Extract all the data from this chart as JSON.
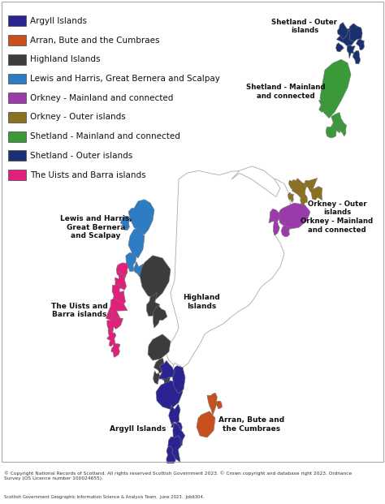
{
  "background_color": "#ffffff",
  "legend_entries": [
    {
      "label": "Argyll Islands",
      "color": "#2B2391"
    },
    {
      "label": "Arran, Bute and the Cumbraes",
      "color": "#C8501C"
    },
    {
      "label": "Highland Islands",
      "color": "#3C3C3C"
    },
    {
      "label": "Lewis and Harris, Great Bernera and Scalpay",
      "color": "#2E7DC4"
    },
    {
      "label": "Orkney - Mainland and connected",
      "color": "#9B3BAB"
    },
    {
      "label": "Orkney - Outer islands",
      "color": "#8B7020"
    },
    {
      "label": "Shetland - Mainland and connected",
      "color": "#3A9A3A"
    },
    {
      "label": "Shetland - Outer islands",
      "color": "#1A3070"
    },
    {
      "label": "The Uists and Barra islands",
      "color": "#E0207A"
    }
  ],
  "copyright_text": "© Copyright National Records of Scotland. All rights reserved Scottish Government 2023. © Crown copyright and database right 2023. Ordnance\nSurvey (OS Licence number 100024655).",
  "footer_text": "Scottish Government Geographic Information Science & Analysis Team.  June 2023.  Job6304.",
  "figsize": [
    4.74,
    6.21
  ],
  "dpi": 100
}
